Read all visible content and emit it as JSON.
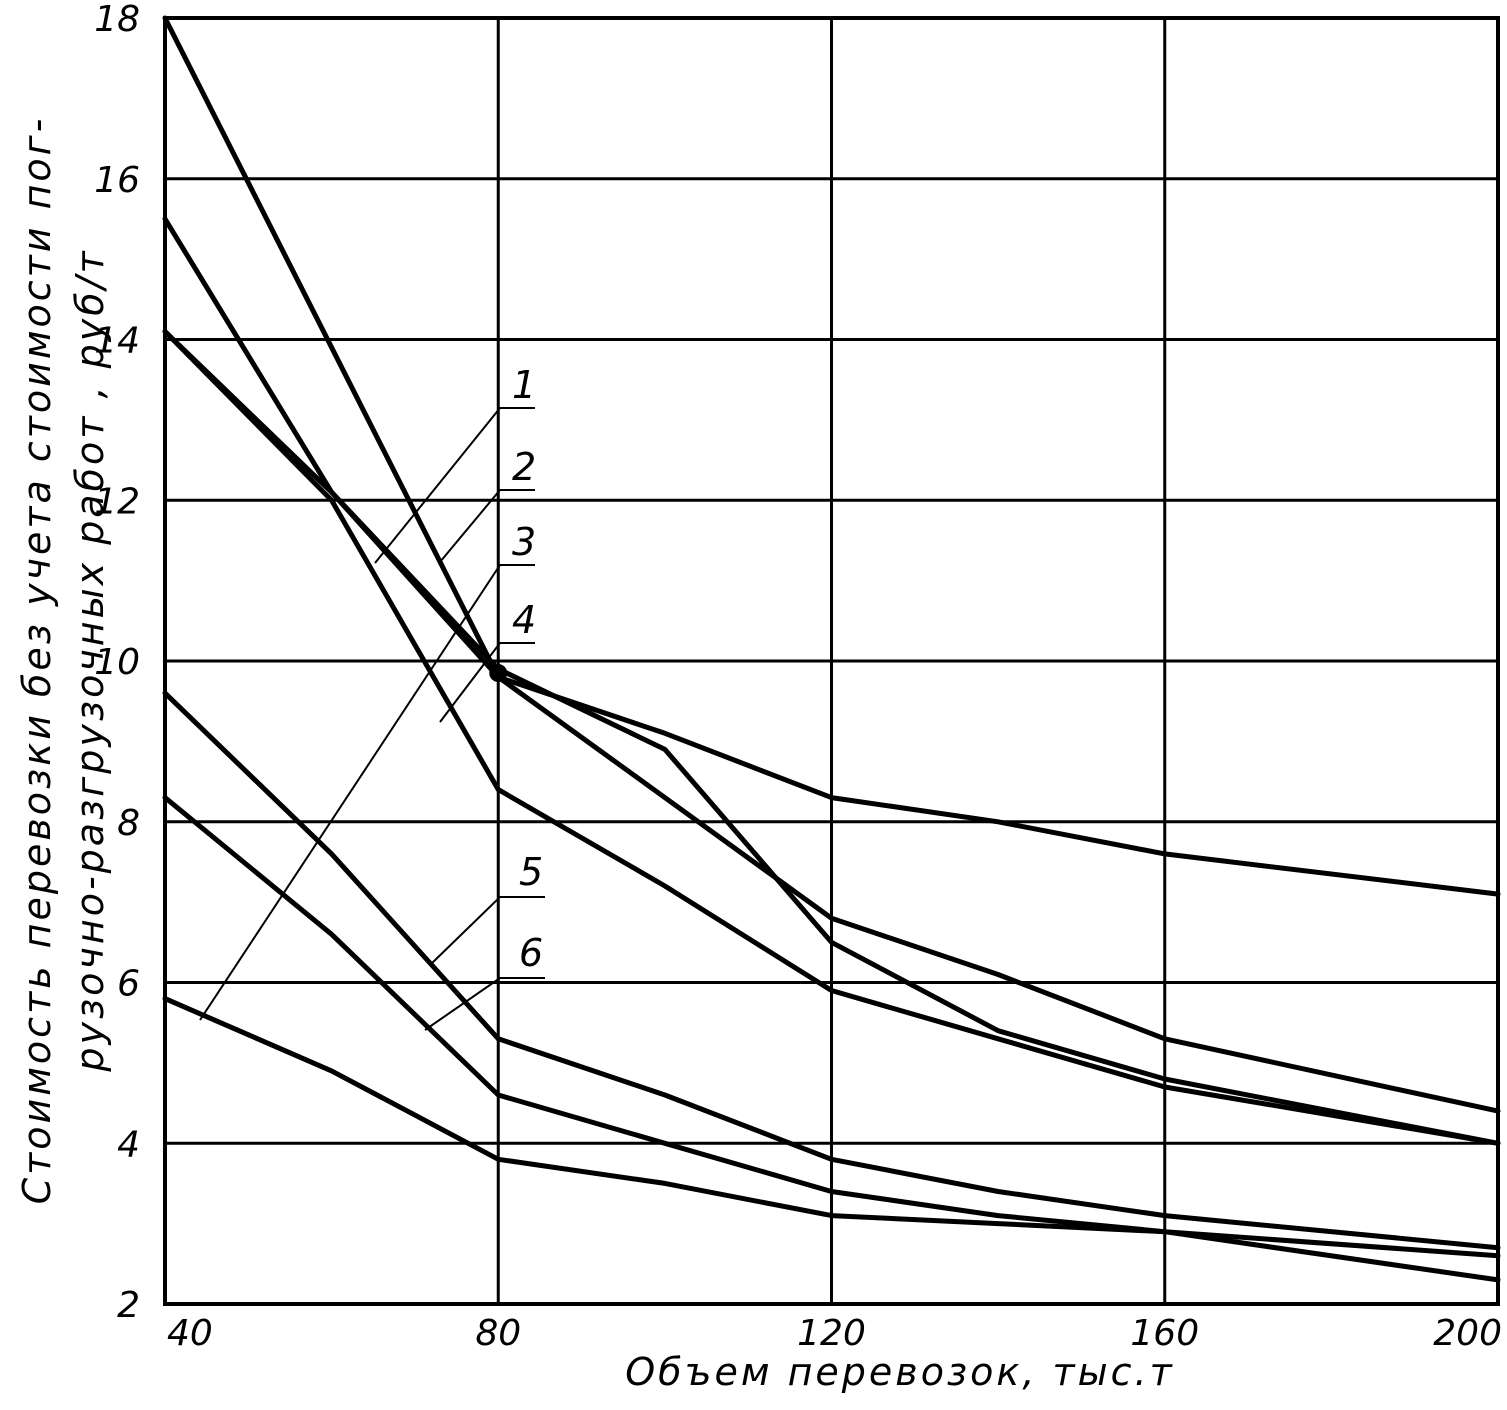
{
  "chart_data": {
    "type": "line",
    "xlabel": "Объем перевозок, тыс.т",
    "ylabel_lines": [
      "Стоимость перевозки без учета стоимости пог-",
      "рузочно-разгрузочных работ , руб/т"
    ],
    "xlim": [
      40,
      200
    ],
    "ylim": [
      2,
      18
    ],
    "xticks": [
      40,
      80,
      120,
      160,
      200
    ],
    "xtick_labels": [
      "40",
      "80",
      "120",
      "160",
      "200"
    ],
    "yticks": [
      2,
      4,
      6,
      8,
      10,
      12,
      14,
      16,
      18
    ],
    "ytick_labels": [
      "2",
      "4",
      "6",
      "8",
      "10",
      "12",
      "14",
      "16",
      "18"
    ],
    "grid": true,
    "series": [
      {
        "name": "1",
        "x": [
          40,
          80,
          100,
          120,
          140,
          160,
          200
        ],
        "y": [
          18.0,
          9.8,
          9.1,
          8.3,
          8.0,
          7.6,
          7.1
        ]
      },
      {
        "name": "2",
        "x": [
          40,
          60,
          80,
          100,
          120,
          140,
          160,
          200
        ],
        "y": [
          15.5,
          12.1,
          9.8,
          8.3,
          6.8,
          6.1,
          5.3,
          4.4
        ]
      },
      {
        "name": "3",
        "x": [
          40,
          60,
          80,
          100,
          120,
          140,
          160,
          200
        ],
        "y": [
          14.1,
          12.1,
          9.9,
          8.9,
          6.5,
          5.4,
          4.8,
          4.0
        ]
      },
      {
        "name": "4",
        "x": [
          40,
          60,
          80,
          100,
          120,
          140,
          160,
          200
        ],
        "y": [
          14.1,
          12.0,
          8.4,
          7.2,
          5.9,
          5.3,
          4.7,
          4.0
        ]
      },
      {
        "name": "5",
        "x": [
          40,
          60,
          80,
          100,
          120,
          140,
          160,
          200
        ],
        "y": [
          9.6,
          7.6,
          5.3,
          4.6,
          3.8,
          3.4,
          3.1,
          2.7
        ]
      },
      {
        "name": "6",
        "x": [
          40,
          60,
          80,
          100,
          120,
          140,
          160,
          200
        ],
        "y": [
          8.3,
          6.6,
          4.6,
          4.0,
          3.4,
          3.1,
          2.9,
          2.6
        ]
      },
      {
        "name": "",
        "x": [
          40,
          60,
          80,
          100,
          120,
          140,
          160,
          200
        ],
        "y": [
          5.8,
          4.9,
          3.8,
          3.5,
          3.1,
          3.0,
          2.9,
          2.3
        ]
      }
    ],
    "curve_labels": [
      "1",
      "2",
      "3",
      "4",
      "5",
      "6"
    ]
  }
}
